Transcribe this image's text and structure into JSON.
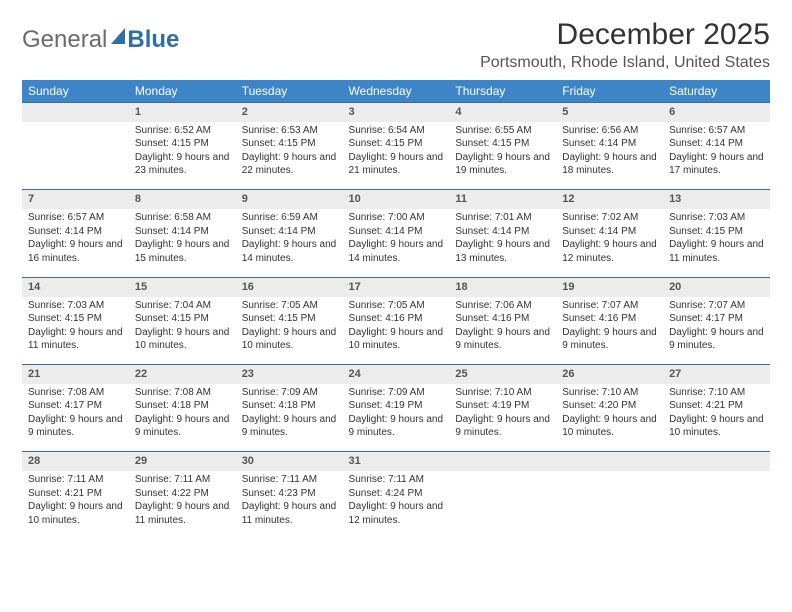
{
  "logo": {
    "text1": "General",
    "text2": "Blue"
  },
  "title": "December 2025",
  "location": "Portsmouth, Rhode Island, United States",
  "colors": {
    "header_bg": "#3d85c6",
    "header_text": "#ffffff",
    "daynum_bg": "#ececec",
    "border": "#2f6fa8",
    "text": "#333333",
    "logo_gray": "#6b6b6b",
    "logo_blue": "#2f6fa8"
  },
  "daysOfWeek": [
    "Sunday",
    "Monday",
    "Tuesday",
    "Wednesday",
    "Thursday",
    "Friday",
    "Saturday"
  ],
  "weeks": [
    [
      null,
      {
        "n": "1",
        "sr": "6:52 AM",
        "ss": "4:15 PM",
        "dl": "9 hours and 23 minutes."
      },
      {
        "n": "2",
        "sr": "6:53 AM",
        "ss": "4:15 PM",
        "dl": "9 hours and 22 minutes."
      },
      {
        "n": "3",
        "sr": "6:54 AM",
        "ss": "4:15 PM",
        "dl": "9 hours and 21 minutes."
      },
      {
        "n": "4",
        "sr": "6:55 AM",
        "ss": "4:15 PM",
        "dl": "9 hours and 19 minutes."
      },
      {
        "n": "5",
        "sr": "6:56 AM",
        "ss": "4:14 PM",
        "dl": "9 hours and 18 minutes."
      },
      {
        "n": "6",
        "sr": "6:57 AM",
        "ss": "4:14 PM",
        "dl": "9 hours and 17 minutes."
      }
    ],
    [
      {
        "n": "7",
        "sr": "6:57 AM",
        "ss": "4:14 PM",
        "dl": "9 hours and 16 minutes."
      },
      {
        "n": "8",
        "sr": "6:58 AM",
        "ss": "4:14 PM",
        "dl": "9 hours and 15 minutes."
      },
      {
        "n": "9",
        "sr": "6:59 AM",
        "ss": "4:14 PM",
        "dl": "9 hours and 14 minutes."
      },
      {
        "n": "10",
        "sr": "7:00 AM",
        "ss": "4:14 PM",
        "dl": "9 hours and 14 minutes."
      },
      {
        "n": "11",
        "sr": "7:01 AM",
        "ss": "4:14 PM",
        "dl": "9 hours and 13 minutes."
      },
      {
        "n": "12",
        "sr": "7:02 AM",
        "ss": "4:14 PM",
        "dl": "9 hours and 12 minutes."
      },
      {
        "n": "13",
        "sr": "7:03 AM",
        "ss": "4:15 PM",
        "dl": "9 hours and 11 minutes."
      }
    ],
    [
      {
        "n": "14",
        "sr": "7:03 AM",
        "ss": "4:15 PM",
        "dl": "9 hours and 11 minutes."
      },
      {
        "n": "15",
        "sr": "7:04 AM",
        "ss": "4:15 PM",
        "dl": "9 hours and 10 minutes."
      },
      {
        "n": "16",
        "sr": "7:05 AM",
        "ss": "4:15 PM",
        "dl": "9 hours and 10 minutes."
      },
      {
        "n": "17",
        "sr": "7:05 AM",
        "ss": "4:16 PM",
        "dl": "9 hours and 10 minutes."
      },
      {
        "n": "18",
        "sr": "7:06 AM",
        "ss": "4:16 PM",
        "dl": "9 hours and 9 minutes."
      },
      {
        "n": "19",
        "sr": "7:07 AM",
        "ss": "4:16 PM",
        "dl": "9 hours and 9 minutes."
      },
      {
        "n": "20",
        "sr": "7:07 AM",
        "ss": "4:17 PM",
        "dl": "9 hours and 9 minutes."
      }
    ],
    [
      {
        "n": "21",
        "sr": "7:08 AM",
        "ss": "4:17 PM",
        "dl": "9 hours and 9 minutes."
      },
      {
        "n": "22",
        "sr": "7:08 AM",
        "ss": "4:18 PM",
        "dl": "9 hours and 9 minutes."
      },
      {
        "n": "23",
        "sr": "7:09 AM",
        "ss": "4:18 PM",
        "dl": "9 hours and 9 minutes."
      },
      {
        "n": "24",
        "sr": "7:09 AM",
        "ss": "4:19 PM",
        "dl": "9 hours and 9 minutes."
      },
      {
        "n": "25",
        "sr": "7:10 AM",
        "ss": "4:19 PM",
        "dl": "9 hours and 9 minutes."
      },
      {
        "n": "26",
        "sr": "7:10 AM",
        "ss": "4:20 PM",
        "dl": "9 hours and 10 minutes."
      },
      {
        "n": "27",
        "sr": "7:10 AM",
        "ss": "4:21 PM",
        "dl": "9 hours and 10 minutes."
      }
    ],
    [
      {
        "n": "28",
        "sr": "7:11 AM",
        "ss": "4:21 PM",
        "dl": "9 hours and 10 minutes."
      },
      {
        "n": "29",
        "sr": "7:11 AM",
        "ss": "4:22 PM",
        "dl": "9 hours and 11 minutes."
      },
      {
        "n": "30",
        "sr": "7:11 AM",
        "ss": "4:23 PM",
        "dl": "9 hours and 11 minutes."
      },
      {
        "n": "31",
        "sr": "7:11 AM",
        "ss": "4:24 PM",
        "dl": "9 hours and 12 minutes."
      },
      null,
      null,
      null
    ]
  ],
  "labels": {
    "sunrise": "Sunrise: ",
    "sunset": "Sunset: ",
    "daylight": "Daylight: "
  }
}
